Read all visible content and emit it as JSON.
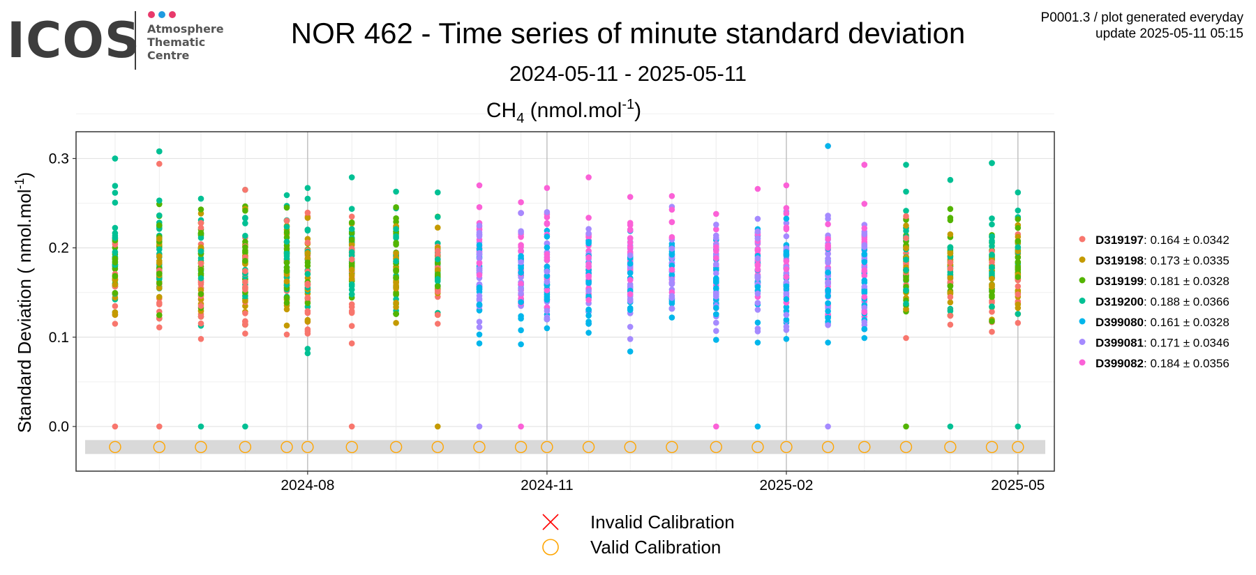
{
  "header": {
    "title": "NOR 462 - Time series of minute standard deviation",
    "subtitle": "2024-05-11 - 2025-05-11",
    "meta_line1": "P0001.3 / plot generated everyday",
    "meta_line2": "update  2025-05-11 05:15"
  },
  "logo": {
    "word": "ICOS",
    "line1": "Atmosphere",
    "line2": "Thematic",
    "line3": "Centre",
    "dot_colors": [
      "#e83a6b",
      "#1f9be0",
      "#e83a6b"
    ]
  },
  "chart_data": {
    "type": "scatter",
    "title": "CH4 (nmol.mol-1)",
    "title_parts": {
      "species": "CH",
      "species_sub": "4",
      "unit": "nmol.mol",
      "unit_sup": "-1"
    },
    "ylabel": "Standard Deviation ( nmol.mol-1)",
    "ylabel_parts": {
      "text": "Standard Deviation ( nmol.mol",
      "sup": "-1",
      "close": ")"
    },
    "ylim": [
      -0.05,
      0.33
    ],
    "yticks": [
      0.0,
      0.1,
      0.2,
      0.3
    ],
    "ytick_labels": [
      "0.0",
      "0.1",
      "0.2",
      "0.3"
    ],
    "xlim": [
      "2024-05-04",
      "2025-05-15"
    ],
    "xticks": [
      "2024-08-01",
      "2024-11-01",
      "2025-02-01",
      "2025-05-01"
    ],
    "xtick_labels": [
      "2024-08",
      "2024-11",
      "2025-02",
      "2025-05"
    ],
    "grid": true,
    "legend_position": "right",
    "series": [
      {
        "name": "D319197",
        "stat": ": 0.164 ± 0.0342",
        "color": "#F8766D",
        "mean": 0.164,
        "sd": 0.0342
      },
      {
        "name": "D319198",
        "stat": ": 0.173 ± 0.0335",
        "color": "#C49A00",
        "mean": 0.173,
        "sd": 0.0335
      },
      {
        "name": "D319199",
        "stat": ": 0.181 ± 0.0328",
        "color": "#53B400",
        "mean": 0.181,
        "sd": 0.0328
      },
      {
        "name": "D319200",
        "stat": ": 0.188 ± 0.0366",
        "color": "#00C094",
        "mean": 0.188,
        "sd": 0.0366
      },
      {
        "name": "D399080",
        "stat": ": 0.161 ± 0.0328",
        "color": "#00B6EB",
        "mean": 0.161,
        "sd": 0.0328
      },
      {
        "name": "D399081",
        "stat": ": 0.171 ± 0.0346",
        "color": "#A58AFF",
        "mean": 0.171,
        "sd": 0.0346
      },
      {
        "name": "D399082",
        "stat": ": 0.184 ± 0.0356",
        "color": "#FB61D7",
        "mean": 0.184,
        "sd": 0.0356
      }
    ],
    "calibration_dates": [
      "2024-05-19",
      "2024-06-05",
      "2024-06-21",
      "2024-07-08",
      "2024-07-24",
      "2024-08-01",
      "2024-08-18",
      "2024-09-04",
      "2024-09-20",
      "2024-10-06",
      "2024-10-22",
      "2024-11-01",
      "2024-11-17",
      "2024-12-03",
      "2024-12-19",
      "2025-01-05",
      "2025-01-21",
      "2025-02-01",
      "2025-02-17",
      "2025-03-03",
      "2025-03-19",
      "2025-04-05",
      "2025-04-21",
      "2025-05-01"
    ],
    "calibration_value": -0.023,
    "clusters": [
      {
        "date": "2024-05-19",
        "series": [
          0,
          1,
          2,
          3
        ],
        "min": 0.115,
        "max": 0.3,
        "zero": [
          0
        ],
        "top": {
          "s": 3,
          "v": 0.3
        }
      },
      {
        "date": "2024-06-05",
        "series": [
          0,
          1,
          2,
          3
        ],
        "min": 0.111,
        "max": 0.308,
        "zero": [
          0
        ],
        "top": {
          "s": 3,
          "v": 0.308
        },
        "extra": {
          "s": 0,
          "v": 0.294
        }
      },
      {
        "date": "2024-06-21",
        "series": [
          0,
          1,
          2,
          3
        ],
        "min": 0.098,
        "max": 0.255,
        "zero": [
          3
        ]
      },
      {
        "date": "2024-07-08",
        "series": [
          0,
          1,
          2,
          3
        ],
        "min": 0.104,
        "max": 0.265,
        "zero": [
          3
        ],
        "top": {
          "s": 0,
          "v": 0.265
        }
      },
      {
        "date": "2024-07-24",
        "series": [
          0,
          1,
          2,
          3
        ],
        "min": 0.103,
        "max": 0.259,
        "zero": []
      },
      {
        "date": "2024-08-01",
        "series": [
          0,
          1,
          2,
          3
        ],
        "min": 0.082,
        "max": 0.267,
        "zero": [],
        "low": {
          "s": 3,
          "v": 0.087
        }
      },
      {
        "date": "2024-08-18",
        "series": [
          0,
          1,
          2,
          3
        ],
        "min": 0.093,
        "max": 0.279,
        "zero": [
          0
        ]
      },
      {
        "date": "2024-09-04",
        "series": [
          1,
          2,
          3
        ],
        "min": 0.116,
        "max": 0.263,
        "zero": []
      },
      {
        "date": "2024-09-20",
        "series": [
          0,
          1,
          2,
          3
        ],
        "min": 0.115,
        "max": 0.262,
        "zero": [
          1
        ]
      },
      {
        "date": "2024-10-06",
        "series": [
          4,
          5,
          6
        ],
        "min": 0.093,
        "max": 0.27,
        "zero": [
          5
        ]
      },
      {
        "date": "2024-10-22",
        "series": [
          4,
          5,
          6
        ],
        "min": 0.092,
        "max": 0.251,
        "zero": [
          6
        ]
      },
      {
        "date": "2024-11-01",
        "series": [
          4,
          5,
          6
        ],
        "min": 0.11,
        "max": 0.267,
        "zero": []
      },
      {
        "date": "2024-11-17",
        "series": [
          4,
          5,
          6
        ],
        "min": 0.105,
        "max": 0.279,
        "zero": []
      },
      {
        "date": "2024-12-03",
        "series": [
          4,
          5,
          6
        ],
        "min": 0.084,
        "max": 0.257,
        "zero": []
      },
      {
        "date": "2024-12-19",
        "series": [
          4,
          5,
          6
        ],
        "min": 0.122,
        "max": 0.258,
        "zero": []
      },
      {
        "date": "2025-01-05",
        "series": [
          4,
          5,
          6
        ],
        "min": 0.097,
        "max": 0.238,
        "zero": [
          6
        ]
      },
      {
        "date": "2025-01-21",
        "series": [
          4,
          5,
          6
        ],
        "min": 0.094,
        "max": 0.266,
        "zero": [
          4
        ]
      },
      {
        "date": "2025-02-01",
        "series": [
          4,
          5,
          6
        ],
        "min": 0.098,
        "max": 0.27,
        "zero": []
      },
      {
        "date": "2025-02-17",
        "series": [
          4,
          5,
          6
        ],
        "min": 0.094,
        "max": 0.314,
        "zero": [
          5
        ],
        "top": {
          "s": 4,
          "v": 0.314
        }
      },
      {
        "date": "2025-03-03",
        "series": [
          4,
          5,
          6
        ],
        "min": 0.099,
        "max": 0.293,
        "zero": [],
        "top": {
          "s": 6,
          "v": 0.293
        }
      },
      {
        "date": "2025-03-19",
        "series": [
          0,
          1,
          2,
          3
        ],
        "min": 0.099,
        "max": 0.293,
        "zero": [
          2
        ]
      },
      {
        "date": "2025-04-05",
        "series": [
          0,
          1,
          2,
          3
        ],
        "min": 0.114,
        "max": 0.276,
        "zero": [
          3
        ]
      },
      {
        "date": "2025-04-21",
        "series": [
          0,
          1,
          2,
          3
        ],
        "min": 0.106,
        "max": 0.295,
        "zero": [],
        "top": {
          "s": 3,
          "v": 0.295
        }
      },
      {
        "date": "2025-05-01",
        "series": [
          0,
          1,
          2,
          3
        ],
        "min": 0.116,
        "max": 0.262,
        "zero": [
          3
        ]
      }
    ],
    "calibration_legend": {
      "invalid_label": "Invalid Calibration",
      "valid_label": "Valid Calibration",
      "invalid_color": "#FF0000",
      "valid_color": "#FFA500"
    }
  }
}
